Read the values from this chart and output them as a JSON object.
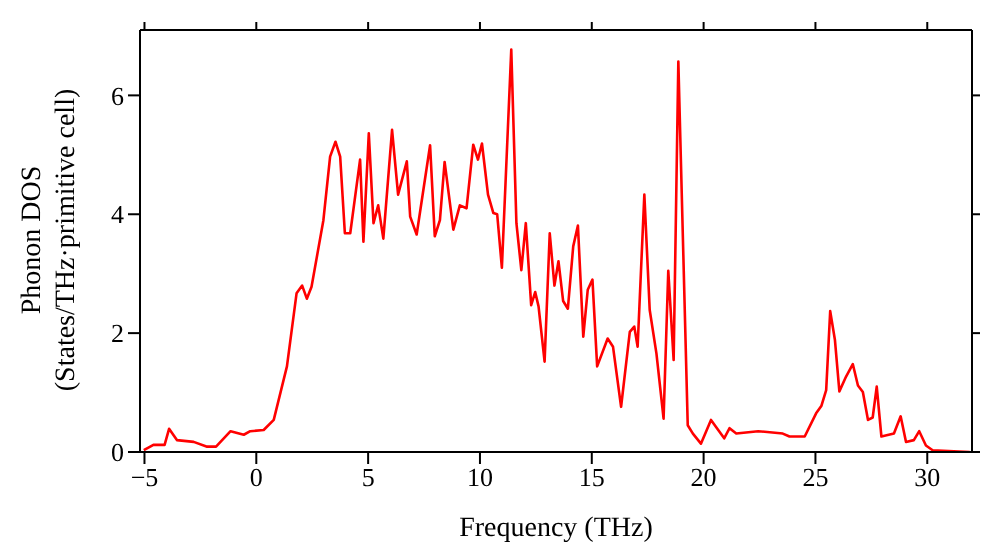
{
  "chart_data": {
    "type": "line",
    "xlabel": "Frequency (THz)",
    "ylabel": "Phonon DOS\n(States/THz·primitive cell)",
    "x": [
      -5.03,
      -4.6,
      -4.1,
      -3.9,
      -3.55,
      -2.8,
      -2.2,
      -1.8,
      -1.15,
      -0.56,
      -0.27,
      0.33,
      0.78,
      1.37,
      1.8,
      2.05,
      2.26,
      2.47,
      3.0,
      3.3,
      3.54,
      3.75,
      3.96,
      4.2,
      4.64,
      4.79,
      5.03,
      5.24,
      5.45,
      5.68,
      6.07,
      6.34,
      6.73,
      6.88,
      7.17,
      7.77,
      7.98,
      8.21,
      8.42,
      8.81,
      9.1,
      9.4,
      9.7,
      9.91,
      10.09,
      10.36,
      10.6,
      10.77,
      10.98,
      11.4,
      11.63,
      11.85,
      12.05,
      12.29,
      12.47,
      12.62,
      12.89,
      13.12,
      13.33,
      13.51,
      13.72,
      13.93,
      14.17,
      14.38,
      14.62,
      14.82,
      15.03,
      15.24,
      15.71,
      15.95,
      16.31,
      16.7,
      16.9,
      17.05,
      17.35,
      17.59,
      17.89,
      18.21,
      18.42,
      18.66,
      18.87,
      19.29,
      19.52,
      19.88,
      20.33,
      20.92,
      21.16,
      21.46,
      22.44,
      23.54,
      23.84,
      24.52,
      25.03,
      25.27,
      25.48,
      25.66,
      25.87,
      26.07,
      26.37,
      26.67,
      26.9,
      27.12,
      27.35,
      27.56,
      27.74,
      27.95,
      28.51,
      28.81,
      29.05,
      29.4,
      29.64,
      29.94,
      30.24,
      31.9
    ],
    "series": [
      {
        "color": "#ff0000",
        "values": [
          0.03,
          0.12,
          0.12,
          0.39,
          0.2,
          0.17,
          0.09,
          0.09,
          0.35,
          0.29,
          0.35,
          0.37,
          0.54,
          1.44,
          2.67,
          2.8,
          2.58,
          2.78,
          3.9,
          4.97,
          5.22,
          4.97,
          3.68,
          3.68,
          4.92,
          3.54,
          5.36,
          3.85,
          4.15,
          3.59,
          5.42,
          4.33,
          4.89,
          3.96,
          3.66,
          5.16,
          3.63,
          3.9,
          4.88,
          3.74,
          4.15,
          4.1,
          5.17,
          4.92,
          5.19,
          4.33,
          4.02,
          4.0,
          3.1,
          6.77,
          3.85,
          3.06,
          3.85,
          2.47,
          2.69,
          2.45,
          1.52,
          3.68,
          2.8,
          3.21,
          2.54,
          2.41,
          3.46,
          3.81,
          1.94,
          2.73,
          2.9,
          1.44,
          1.91,
          1.77,
          0.76,
          2.02,
          2.11,
          1.77,
          4.33,
          2.39,
          1.66,
          0.56,
          3.05,
          1.55,
          6.57,
          0.45,
          0.31,
          0.14,
          0.54,
          0.23,
          0.4,
          0.31,
          0.35,
          0.31,
          0.26,
          0.26,
          0.65,
          0.78,
          1.04,
          2.37,
          1.89,
          1.02,
          1.27,
          1.48,
          1.12,
          1.01,
          0.54,
          0.58,
          1.1,
          0.26,
          0.31,
          0.6,
          0.17,
          0.2,
          0.35,
          0.11,
          0.03,
          0.0
        ]
      }
    ],
    "xlim": [
      -5.2,
      32
    ],
    "xticks": [
      {
        "value": -5,
        "label": "−5"
      },
      0,
      5,
      10,
      15,
      20,
      25,
      30
    ],
    "ylim": [
      0,
      7.1
    ],
    "yticks": [
      0,
      2,
      4,
      6
    ],
    "legend": false,
    "marker": "none",
    "line_style": "solid"
  }
}
